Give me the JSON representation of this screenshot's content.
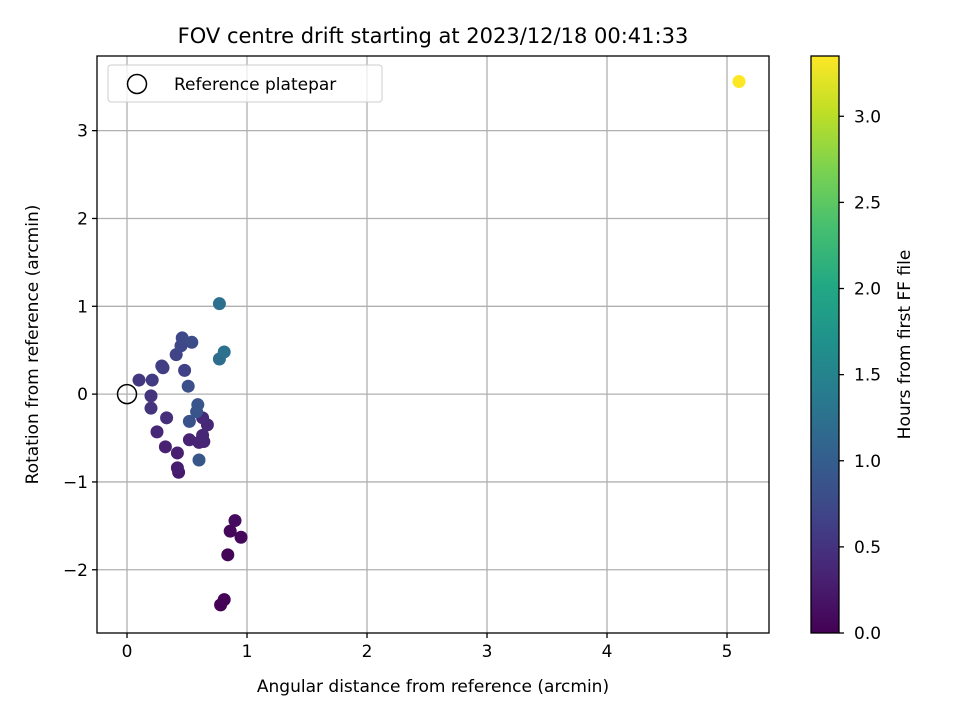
{
  "chart_data": {
    "type": "scatter",
    "title": "FOV centre drift starting at 2023/12/18 00:41:33",
    "xlabel": "Angular distance from reference (arcmin)",
    "ylabel": "Rotation from reference (arcmin)",
    "xlim": [
      -0.25,
      5.35
    ],
    "ylim": [
      -2.72,
      3.85
    ],
    "x_ticks": [
      0,
      1,
      2,
      3,
      4,
      5
    ],
    "x_tick_labels": [
      "0",
      "1",
      "2",
      "3",
      "4",
      "5"
    ],
    "y_ticks": [
      -2,
      -1,
      0,
      1,
      2,
      3
    ],
    "y_tick_labels": [
      "−2",
      "−1",
      "0",
      "1",
      "2",
      "3"
    ],
    "grid": true,
    "legend": {
      "placement": "upper-left",
      "entries": [
        {
          "label": "Reference platepar",
          "marker": "open-circle"
        }
      ]
    },
    "reference_point": {
      "x": 0,
      "y": 0
    },
    "colormap": "viridis",
    "colorbar": {
      "label": "Hours from first FF file",
      "range": [
        0,
        3.35
      ],
      "ticks": [
        0.0,
        0.5,
        1.0,
        1.5,
        2.0,
        2.5,
        3.0
      ],
      "tick_labels": [
        "0.0",
        "0.5",
        "1.0",
        "1.5",
        "2.0",
        "2.5",
        "3.0"
      ]
    },
    "points": [
      {
        "x": 0.78,
        "y": -2.4,
        "hours": 0.0
      },
      {
        "x": 0.81,
        "y": -2.34,
        "hours": 0.02
      },
      {
        "x": 0.84,
        "y": -1.83,
        "hours": 0.04
      },
      {
        "x": 0.86,
        "y": -1.56,
        "hours": 0.06
      },
      {
        "x": 0.95,
        "y": -1.63,
        "hours": 0.08
      },
      {
        "x": 0.9,
        "y": -1.44,
        "hours": 0.1
      },
      {
        "x": 0.43,
        "y": -0.89,
        "hours": 0.25
      },
      {
        "x": 0.42,
        "y": -0.84,
        "hours": 0.28
      },
      {
        "x": 0.42,
        "y": -0.67,
        "hours": 0.3
      },
      {
        "x": 0.32,
        "y": -0.6,
        "hours": 0.32
      },
      {
        "x": 0.52,
        "y": -0.52,
        "hours": 0.34
      },
      {
        "x": 0.6,
        "y": -0.55,
        "hours": 0.35
      },
      {
        "x": 0.64,
        "y": -0.54,
        "hours": 0.36
      },
      {
        "x": 0.63,
        "y": -0.47,
        "hours": 0.37
      },
      {
        "x": 0.25,
        "y": -0.43,
        "hours": 0.38
      },
      {
        "x": 0.67,
        "y": -0.35,
        "hours": 0.39
      },
      {
        "x": 0.63,
        "y": -0.27,
        "hours": 0.4
      },
      {
        "x": 0.33,
        "y": -0.27,
        "hours": 0.45
      },
      {
        "x": 0.2,
        "y": -0.16,
        "hours": 0.5
      },
      {
        "x": 0.2,
        "y": -0.02,
        "hours": 0.52
      },
      {
        "x": 0.1,
        "y": 0.16,
        "hours": 0.55
      },
      {
        "x": 0.21,
        "y": 0.16,
        "hours": 0.58
      },
      {
        "x": 0.3,
        "y": 0.3,
        "hours": 0.6
      },
      {
        "x": 0.29,
        "y": 0.32,
        "hours": 0.62
      },
      {
        "x": 0.48,
        "y": 0.27,
        "hours": 0.65
      },
      {
        "x": 0.41,
        "y": 0.45,
        "hours": 0.68
      },
      {
        "x": 0.45,
        "y": 0.55,
        "hours": 0.72
      },
      {
        "x": 0.46,
        "y": 0.64,
        "hours": 0.75
      },
      {
        "x": 0.54,
        "y": 0.59,
        "hours": 0.78
      },
      {
        "x": 0.51,
        "y": 0.09,
        "hours": 0.82
      },
      {
        "x": 0.52,
        "y": -0.31,
        "hours": 0.85
      },
      {
        "x": 0.58,
        "y": -0.2,
        "hours": 0.88
      },
      {
        "x": 0.59,
        "y": -0.12,
        "hours": 0.9
      },
      {
        "x": 0.6,
        "y": -0.75,
        "hours": 0.92
      },
      {
        "x": 0.77,
        "y": 0.4,
        "hours": 1.2
      },
      {
        "x": 0.81,
        "y": 0.48,
        "hours": 1.25
      },
      {
        "x": 0.77,
        "y": 1.03,
        "hours": 1.22
      },
      {
        "x": 5.1,
        "y": 3.56,
        "hours": 3.35
      }
    ]
  }
}
